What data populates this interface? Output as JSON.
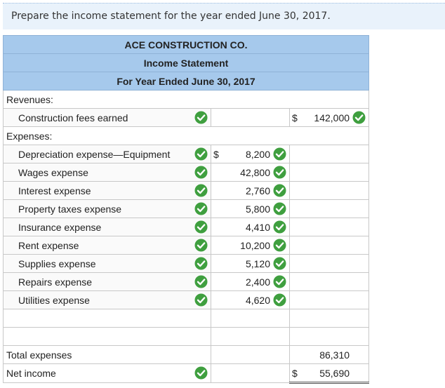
{
  "instruction": "Prepare the income statement for the year ended June 30, 2017.",
  "statement": {
    "header": [
      "ACE CONSTRUCTION CO.",
      "Income Statement",
      "For Year Ended June 30, 2017"
    ],
    "rows": [
      {
        "label": "Revenues:"
      },
      {
        "label": "Construction fees earned",
        "total_currency": "$",
        "total": "142,000"
      },
      {
        "label": "Expenses:"
      },
      {
        "label": "Depreciation expense—Equipment",
        "amount_currency": "$",
        "amount": "8,200"
      },
      {
        "label": "Wages expense",
        "amount": "42,800"
      },
      {
        "label": "Interest expense",
        "amount": "2,760"
      },
      {
        "label": "Property taxes expense",
        "amount": "5,800"
      },
      {
        "label": "Insurance expense",
        "amount": "4,410"
      },
      {
        "label": "Rent expense",
        "amount": "10,200"
      },
      {
        "label": "Supplies expense",
        "amount": "5,120"
      },
      {
        "label": "Repairs expense",
        "amount": "2,400"
      },
      {
        "label": "Utilities expense",
        "amount": "4,620"
      },
      {
        "label": "Total expenses",
        "total": "86,310"
      },
      {
        "label": "Net income",
        "total_currency": "$",
        "total": "55,690"
      }
    ]
  }
}
